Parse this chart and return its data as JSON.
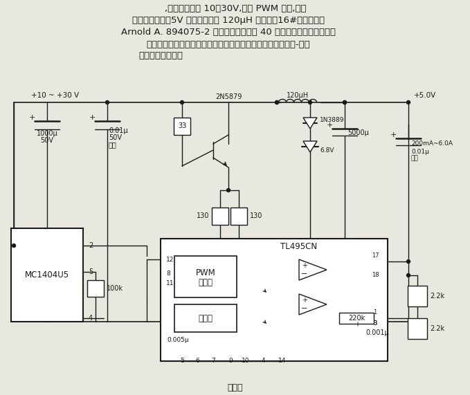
{
  "bg_color": "#e8e8e0",
  "line_color": "#1a1a1a",
  "text_color": "#1a1a1a",
  "figsize": [
    6.79,
    5.71
  ],
  "dpi": 100,
  "texts": {
    "t1": ",其输入电压为 10～30V,经过 PWM 调制,输出",
    "t2": "一个高稳定度的5V 电压。电路中 120μH 的电感用16#线在型号为",
    "t3": "Arnold A. 894075-2 鐵氧体磁芯上绕制 40 圈而成，其它元器件很容",
    "t4": "易购得。这个电路非常适用于要求高稳定度电源的场合，如模-数转",
    "t5": "换器的参考电源。",
    "bottom": "见正文",
    "pwm": "PWM\n发生器",
    "sampler": "采样器",
    "mc": "MC1404U5",
    "tl": "TL495CN",
    "v_in": "+10 ~ +30 V",
    "v_out": "+5.0V",
    "c1": "1000μ\n50V",
    "c2": "0.01μ\n50V\n陶瓷",
    "c3": "5000μ",
    "c4": "0.01μ\n陶瓷",
    "r1": "33",
    "r2": "130",
    "r3": "130",
    "r4": "100k",
    "r5": "2.2k",
    "r6": "220k",
    "r7": "2.2k",
    "d1": "1N3889",
    "zd": "6.8V",
    "tr": "2N5879",
    "l1": "120μH",
    "c5": "0.005μ",
    "c6": "0.001μ",
    "out_label": "200mA~6.0A\n0.01μ\n陶瓷",
    "pins": [
      "12",
      "8",
      "11",
      "-5",
      "6",
      "7",
      "9",
      "10",
      "4",
      "14",
      "17",
      "18",
      "1",
      "3",
      "2",
      "5",
      "4"
    ]
  }
}
